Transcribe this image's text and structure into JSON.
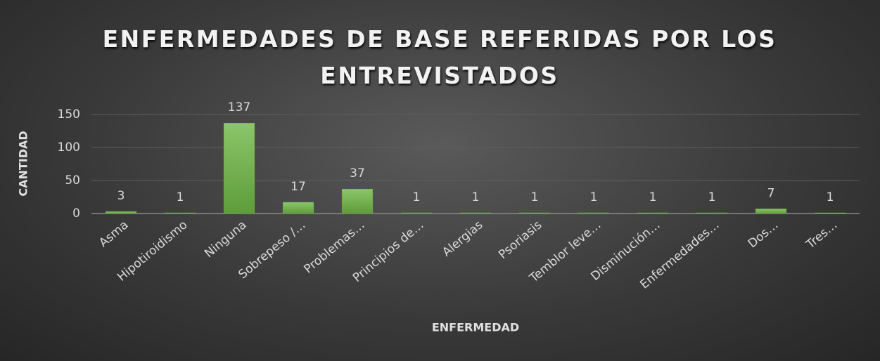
{
  "chart_data": {
    "type": "bar",
    "title": "ENFERMEDADES DE BASE REFERIDAS POR LOS ENTREVISTADOS",
    "x_label": "ENFERMEDAD",
    "y_label": "CANTIDAD",
    "categories": [
      "Asma",
      "Hipotiroidismo",
      "Ninguna",
      "Sobrepeso /…",
      "Problemas…",
      "Principios de…",
      "Alergias",
      "Psoriasis",
      "Temblor leve…",
      "Disminución…",
      "Enfermedades…",
      "Dos…",
      "Tres…"
    ],
    "values": [
      3,
      1,
      137,
      17,
      37,
      1,
      1,
      1,
      1,
      1,
      1,
      7,
      1
    ],
    "color": "#70ad47",
    "ylim": [
      0,
      150
    ],
    "yticks": [
      0,
      50,
      100,
      150
    ],
    "grid": true
  }
}
